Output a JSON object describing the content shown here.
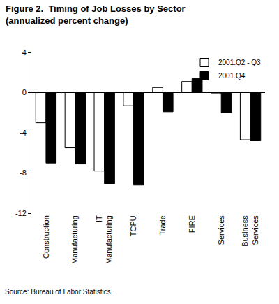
{
  "chart_data": {
    "type": "bar",
    "title": "Figure 2.  Timing of Job Losses by Sector",
    "subtitle": "(annualized percent change)",
    "categories": [
      "Construction",
      "Manufacturing",
      "IT Manufacturing",
      "TCPU",
      "Trade",
      "FIRE",
      "Services",
      "Business Services"
    ],
    "series": [
      {
        "name": "2001.Q2 - Q3",
        "color": "#ffffff",
        "values": [
          -3.0,
          -5.5,
          -7.8,
          -1.3,
          0.5,
          1.1,
          -0.1,
          -4.7
        ]
      },
      {
        "name": "2001.Q4",
        "color": "#000000",
        "values": [
          -7.0,
          -7.1,
          -9.1,
          -9.2,
          -1.9,
          1.4,
          -2.0,
          -4.8
        ]
      }
    ],
    "ylim": [
      -12,
      4
    ],
    "yticks": [
      -12,
      -8,
      -4,
      0,
      4
    ],
    "grid": false,
    "legend": "top right",
    "annotations": [
      "Source: Bureau of Labor Statistics."
    ]
  }
}
